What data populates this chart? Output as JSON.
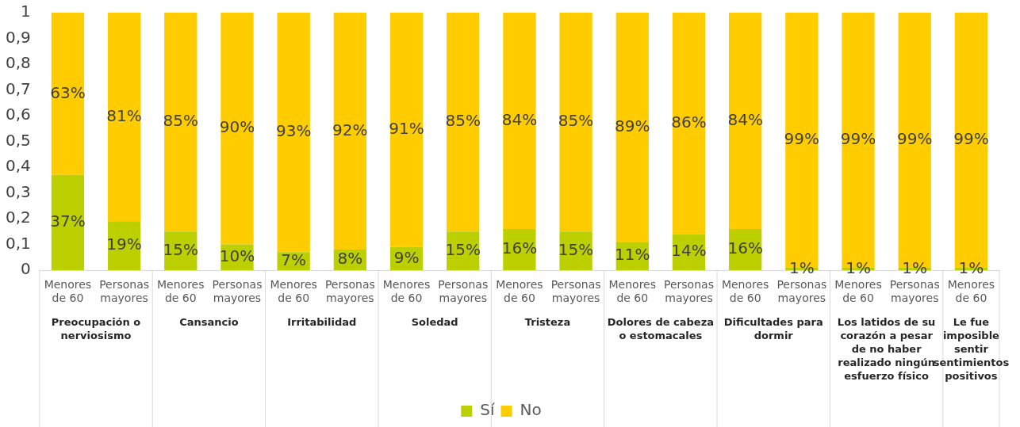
{
  "chart_data": {
    "type": "bar",
    "stacked": true,
    "legend": "bottom",
    "grid": false,
    "categories": [
      "Menores de 60",
      "Personas mayores",
      "Menores de 60",
      "Personas mayores",
      "Menores de 60",
      "Personas mayores",
      "Menores de 60",
      "Personas mayores",
      "Menores de 60",
      "Personas mayores",
      "Menores de 60",
      "Personas mayores",
      "Menores de 60",
      "Personas mayores",
      "Menores de 60",
      "Personas mayores",
      "Menores de 60"
    ],
    "series": [
      {
        "name": "Sí",
        "color": "#bcd000",
        "values": [
          0.37,
          0.19,
          0.15,
          0.1,
          0.07,
          0.08,
          0.09,
          0.15,
          0.16,
          0.15,
          0.11,
          0.14,
          0.16,
          0.01,
          0.01,
          0.01,
          0.01
        ],
        "value_labels": [
          "37%",
          "19%",
          "15%",
          "10%",
          "7%",
          "8%",
          "9%",
          "15%",
          "16%",
          "15%",
          "11%",
          "14%",
          "16%",
          "1%",
          "1%",
          "1%",
          "1%"
        ]
      },
      {
        "name": "No",
        "color": "#ffcc00",
        "values": [
          0.63,
          0.81,
          0.85,
          0.9,
          0.93,
          0.92,
          0.91,
          0.85,
          0.84,
          0.85,
          0.89,
          0.86,
          0.84,
          0.99,
          0.99,
          0.99,
          0.99
        ],
        "value_labels": [
          "63%",
          "81%",
          "85%",
          "90%",
          "93%",
          "92%",
          "91%",
          "85%",
          "84%",
          "85%",
          "89%",
          "86%",
          "84%",
          "99%",
          "99%",
          "99%",
          "99%"
        ]
      }
    ],
    "ylim": [
      0,
      1
    ],
    "yticks": [
      0,
      {
        "value": 0.1,
        "label": "0,1"
      },
      {
        "value": 0.2,
        "label": "0,2"
      },
      {
        "value": 0.3,
        "label": "0,3"
      },
      {
        "value": 0.4,
        "label": "0,4"
      },
      {
        "value": 0.5,
        "label": "0,5"
      },
      {
        "value": 0.6,
        "label": "0,6"
      },
      {
        "value": 0.7,
        "label": "0,7"
      },
      {
        "value": 0.8,
        "label": "0,8"
      },
      {
        "value": 0.9,
        "label": "0,9"
      },
      1
    ],
    "annotations": [
      "Preocupación o nerviosismo",
      "Cansancio",
      "Irritabilidad",
      "Soledad",
      "Tristeza",
      "Dolores de cabeza o estomacales",
      "Dificultades para dormir",
      "Los latidos de su corazón a pesar de no haber realizado ningún esfuerzo físico",
      "Le fue imposible sentir sentimientos positivos"
    ]
  }
}
